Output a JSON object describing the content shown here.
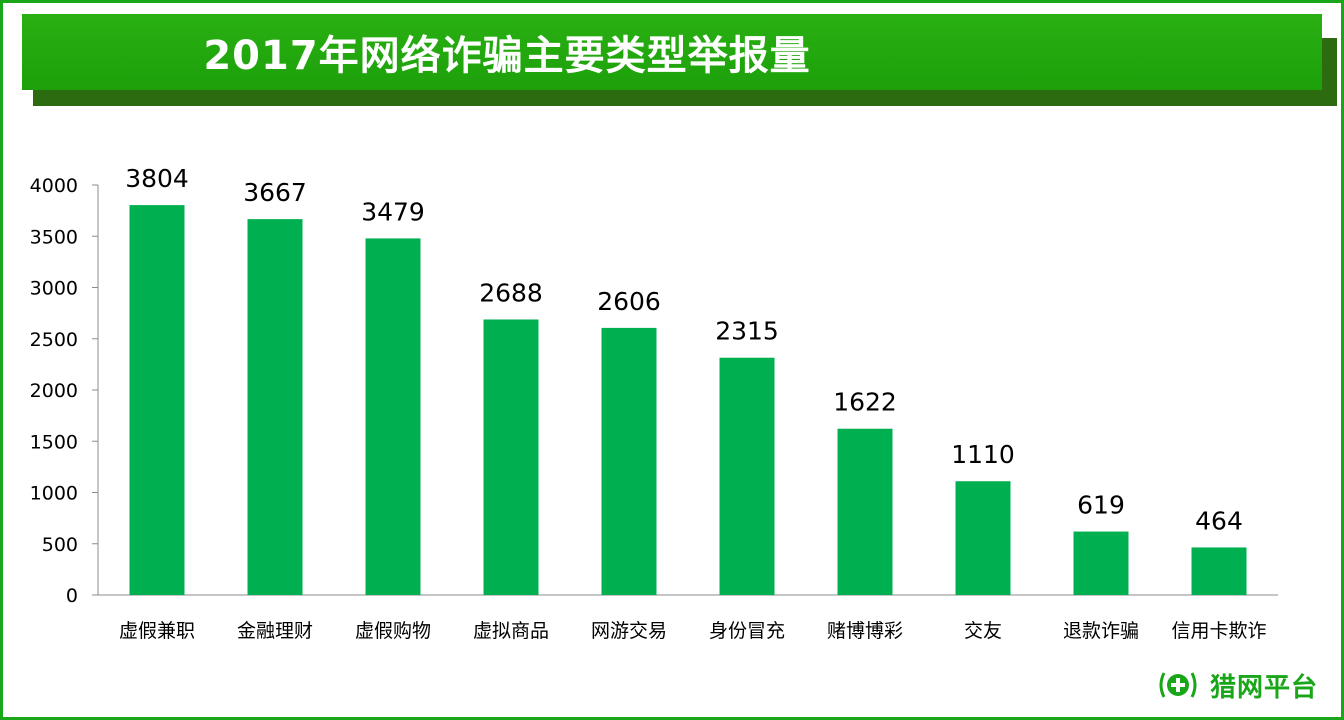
{
  "colors": {
    "frame": "#19a719",
    "banner": "#1da00a",
    "bar": "#00b050",
    "logo": "#19a719"
  },
  "logo": {
    "text": "猎网平台",
    "icon": "cross-laurel-icon"
  },
  "chart_data": {
    "type": "bar",
    "title": "2017年网络诈骗主要类型举报量",
    "xlabel": "",
    "ylabel": "",
    "categories": [
      "虚假兼职",
      "金融理财",
      "虚假购物",
      "虚拟商品",
      "网游交易",
      "身份冒充",
      "赌博博彩",
      "交友",
      "退款诈骗",
      "信用卡欺诈"
    ],
    "values": [
      3804,
      3667,
      3479,
      2688,
      2606,
      2315,
      1622,
      1110,
      619,
      464
    ],
    "ylim": [
      0,
      4000
    ],
    "yticks": [
      0,
      500,
      1000,
      1500,
      2000,
      2500,
      3000,
      3500,
      4000
    ],
    "grid": false,
    "legend": "none",
    "data_labels": true
  }
}
